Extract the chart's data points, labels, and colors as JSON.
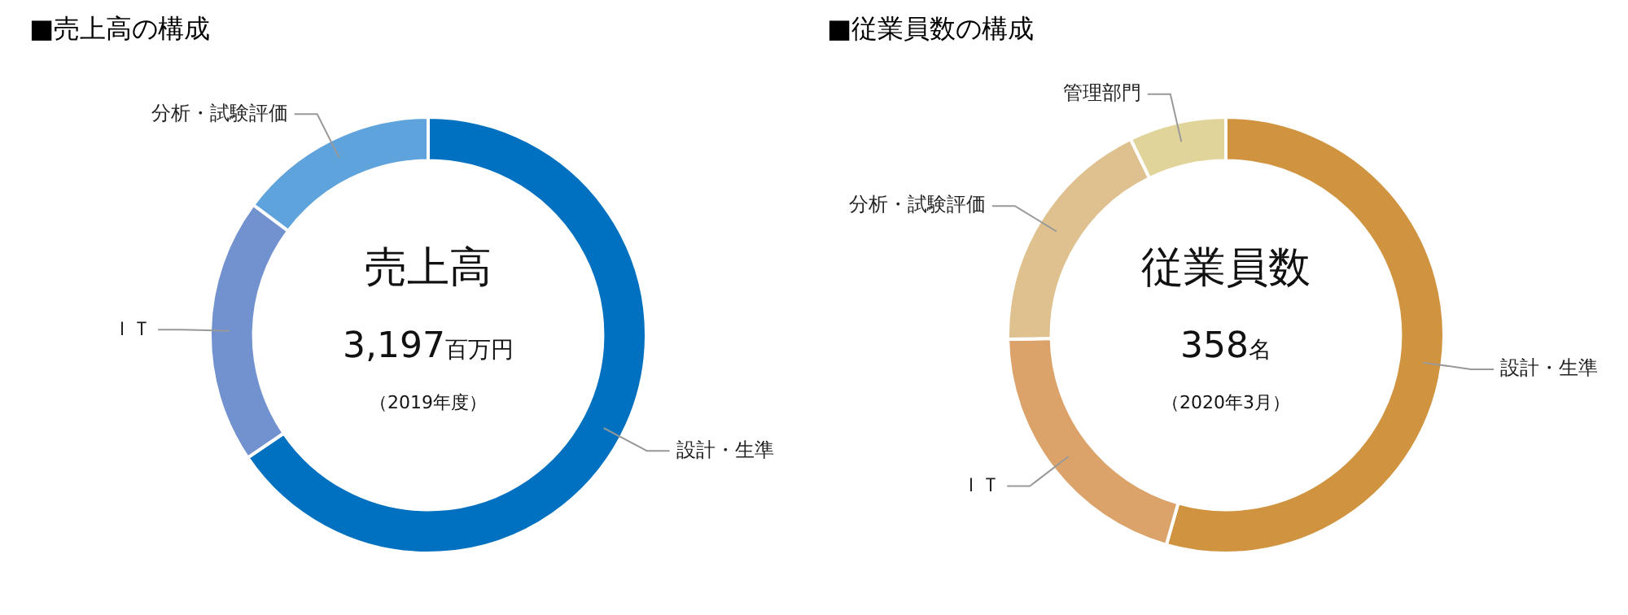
{
  "chart_data": [
    {
      "type": "donut",
      "title": "■売上高の構成",
      "categories": [
        "設計・生準",
        "ＩＴ",
        "分析・試験評価"
      ],
      "values": [
        65.5,
        19.7,
        14.8
      ],
      "colors": [
        "#0070c0",
        "#7191cf",
        "#5fa3dc"
      ],
      "annotations": [
        "売上高",
        "3,197百万円",
        "（2019年度）"
      ],
      "legend": false
    },
    {
      "type": "donut",
      "title": "■従業員数の構成",
      "categories": [
        "設計・生準",
        "ＩＴ",
        "分析・試験評価",
        "管理部門"
      ],
      "values": [
        54.4,
        20.3,
        18.1,
        7.2
      ],
      "colors": [
        "#d09440",
        "#dba36a",
        "#dfc190",
        "#e0d49a"
      ],
      "annotations": [
        "従業員数",
        "358名",
        "（2020年3月）"
      ],
      "legend": false
    }
  ]
}
